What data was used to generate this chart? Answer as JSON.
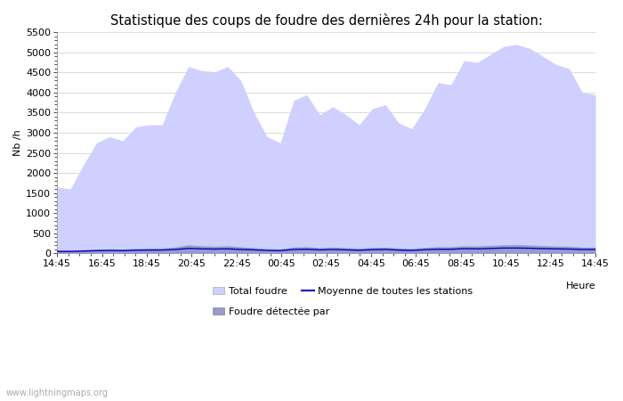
{
  "title": "Statistique des coups de foudre des dernières 24h pour la station:",
  "ylabel": "Nb /h",
  "xlabel_right": "Heure",
  "watermark": "www.lightningmaps.org",
  "ylim": [
    0,
    5500
  ],
  "yticks": [
    0,
    500,
    1000,
    1500,
    2000,
    2500,
    3000,
    3500,
    4000,
    4500,
    5000,
    5500
  ],
  "xtick_labels": [
    "14:45",
    "16:45",
    "18:45",
    "20:45",
    "22:45",
    "00:45",
    "02:45",
    "04:45",
    "06:45",
    "08:45",
    "10:45",
    "12:45",
    "14:45"
  ],
  "legend_items": [
    {
      "label": "Total foudre",
      "color": "#ccccff",
      "type": "patch"
    },
    {
      "label": "Moyenne de toutes les stations",
      "color": "#0000cc",
      "type": "line"
    },
    {
      "label": "Foudre détectée par",
      "color": "#aaaadd",
      "type": "patch"
    }
  ],
  "total_foudre_y": [
    1650,
    1600,
    2200,
    2750,
    2900,
    2800,
    3150,
    3200,
    3200,
    4000,
    4650,
    4550,
    4520,
    4650,
    4300,
    3500,
    2900,
    2750,
    3800,
    3950,
    3450,
    3650,
    3450,
    3200,
    3600,
    3700,
    3250,
    3100,
    3600,
    4250,
    4200,
    4800,
    4750,
    4950,
    5150,
    5200,
    5100,
    4900,
    4700,
    4600,
    4000,
    3950
  ],
  "foudre_detectee_y": [
    80,
    75,
    90,
    100,
    110,
    105,
    120,
    125,
    130,
    155,
    210,
    185,
    175,
    185,
    160,
    140,
    115,
    110,
    155,
    165,
    140,
    155,
    140,
    125,
    145,
    150,
    130,
    120,
    145,
    165,
    165,
    185,
    180,
    195,
    210,
    215,
    205,
    190,
    180,
    175,
    155,
    150
  ],
  "moyenne_y": [
    45,
    45,
    55,
    65,
    70,
    65,
    75,
    80,
    80,
    95,
    120,
    110,
    105,
    110,
    95,
    85,
    70,
    65,
    95,
    100,
    85,
    95,
    85,
    75,
    90,
    95,
    80,
    70,
    90,
    100,
    100,
    115,
    110,
    120,
    130,
    130,
    125,
    115,
    110,
    105,
    95,
    95
  ],
  "fill_color_total": "#d0d0ff",
  "fill_color_detectee": "#9999cc",
  "line_color_moyenne": "#0000cc",
  "background_color": "#ffffff",
  "plot_bg_color": "#ffffff",
  "grid_color": "#cccccc",
  "title_fontsize": 10.5,
  "tick_fontsize": 8,
  "legend_fontsize": 8
}
